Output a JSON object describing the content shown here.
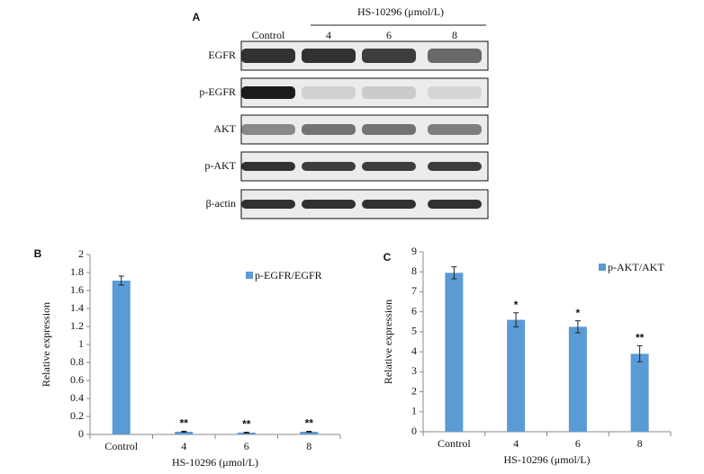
{
  "blot": {
    "panel": "A",
    "group_label": "HS-10296 (μmol/L)",
    "lanes": [
      "Control",
      "4",
      "6",
      "8"
    ],
    "rows": [
      "EGFR",
      "p-EGFR",
      "AKT",
      "p-AKT",
      "β-actin"
    ]
  },
  "chart_data": [
    {
      "type": "bar",
      "panel": "B",
      "x_label": "HS-10296 (μmol/L)",
      "y_label": "Relative expression",
      "categories": [
        "Control",
        "4",
        "6",
        "8"
      ],
      "series": [
        {
          "name": "p-EGFR/EGFR",
          "color": "#5b9bd5",
          "values": [
            1.71,
            0.03,
            0.02,
            0.03
          ],
          "errors": [
            0.05,
            0.005,
            0.005,
            0.005
          ]
        }
      ],
      "annotations": [
        null,
        "**",
        "**",
        "**"
      ],
      "ylim": [
        0,
        2
      ],
      "yticks": [
        0,
        0.2,
        0.4,
        0.6,
        0.8,
        1,
        1.2,
        1.4,
        1.6,
        1.8,
        2
      ],
      "grid": false
    },
    {
      "type": "bar",
      "panel": "C",
      "x_label": "HS-10296 (μmol/L)",
      "y_label": "Relative expression",
      "categories": [
        "Control",
        "4",
        "6",
        "8"
      ],
      "series": [
        {
          "name": "p-AKT/AKT",
          "color": "#5b9bd5",
          "values": [
            7.95,
            5.6,
            5.25,
            3.9
          ],
          "errors": [
            0.3,
            0.35,
            0.3,
            0.4
          ]
        }
      ],
      "annotations": [
        null,
        "*",
        "*",
        "**"
      ],
      "ylim": [
        0,
        9
      ],
      "yticks": [
        0,
        1,
        2,
        3,
        4,
        5,
        6,
        7,
        8,
        9
      ],
      "grid": false
    }
  ]
}
